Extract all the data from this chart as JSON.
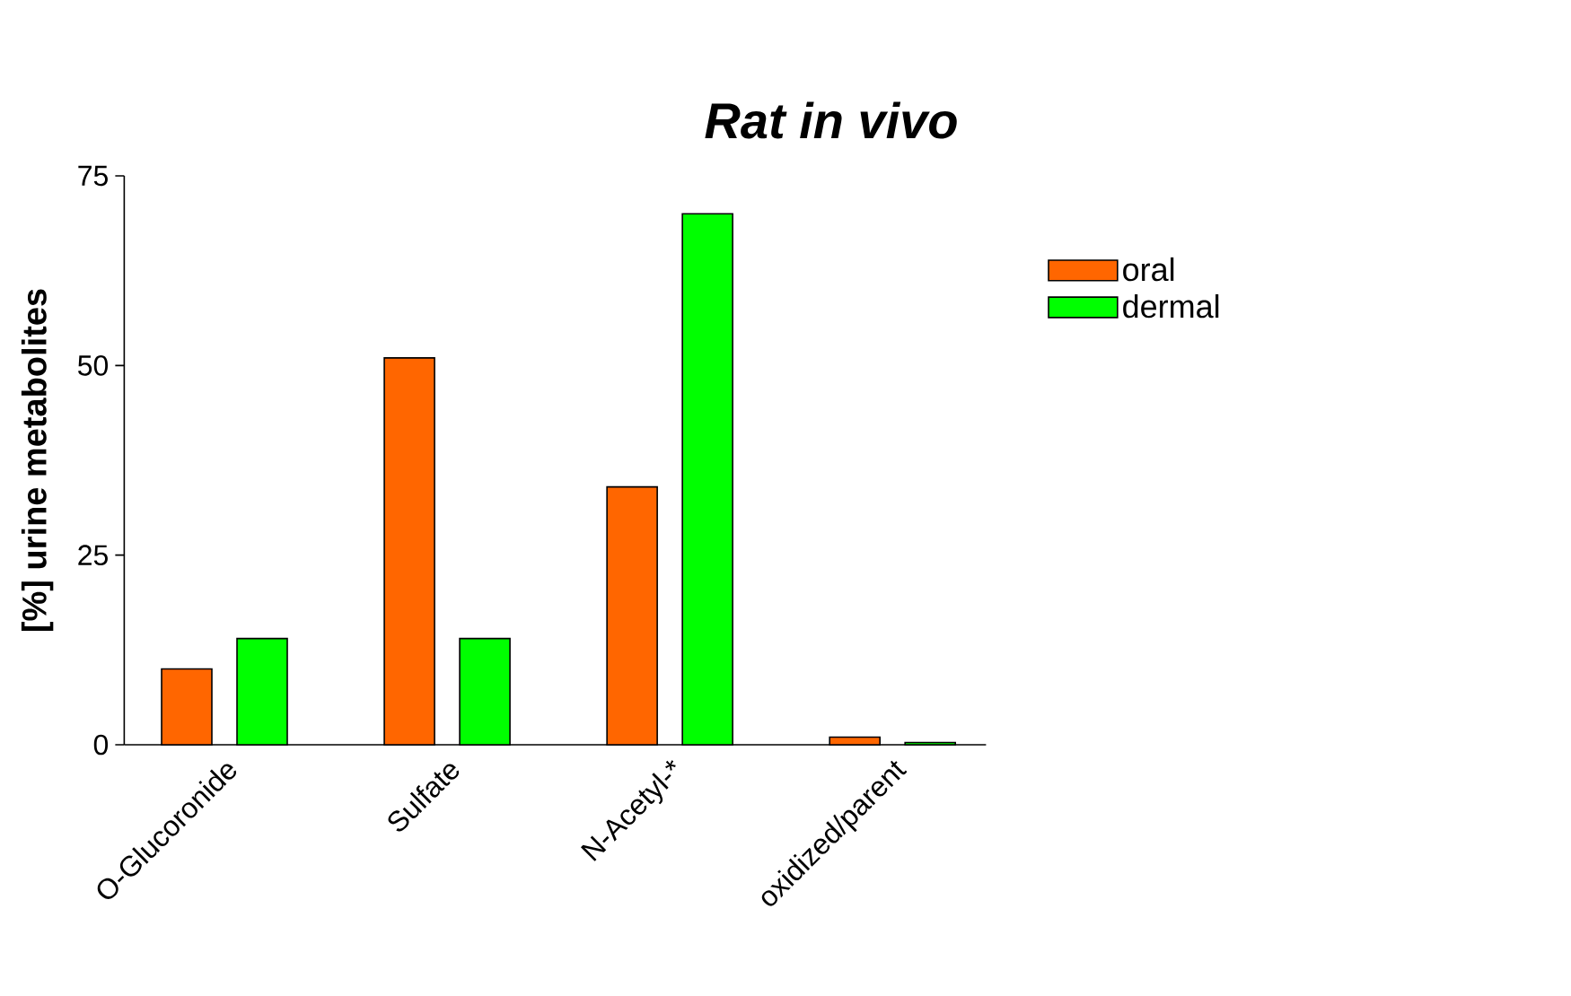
{
  "chart_data": {
    "type": "bar",
    "title": "*Rat in vivo*",
    "ylabel": "[%] urine metabolites",
    "categories": [
      "O-Glucoronide",
      "Sulfate",
      "N-Acetyl-*",
      "oxidized/parent"
    ],
    "series": [
      {
        "name": "oral",
        "color": "#ff6600",
        "values": [
          10,
          51,
          34,
          1
        ]
      },
      {
        "name": "dermal",
        "color": "#00ff00",
        "values": [
          14,
          14,
          70,
          0.3
        ]
      }
    ],
    "ylim": [
      0,
      75
    ],
    "yticks": [
      0,
      25,
      50,
      75
    ],
    "legend": "top right"
  }
}
